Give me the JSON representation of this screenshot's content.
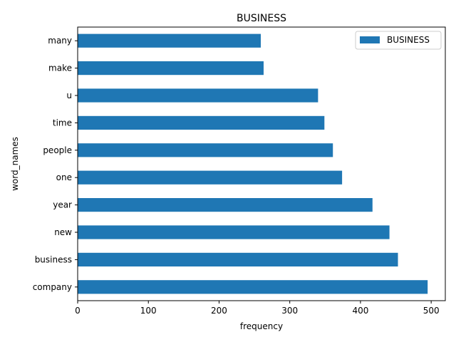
{
  "chart_data": {
    "type": "bar",
    "orientation": "horizontal",
    "title": "BUSINESS",
    "xlabel": "frequency",
    "ylabel": "word_names",
    "categories": [
      "company",
      "business",
      "new",
      "year",
      "one",
      "people",
      "time",
      "u",
      "make",
      "many"
    ],
    "series": [
      {
        "name": "BUSINESS",
        "values": [
          495,
          453,
          441,
          417,
          374,
          361,
          349,
          340,
          263,
          259
        ],
        "color": "#1f77b4"
      }
    ],
    "xlim": [
      0,
      520
    ],
    "xticks": [
      "0",
      "100",
      "200",
      "300",
      "400",
      "500"
    ],
    "grid": false,
    "legend_position": "top-right"
  }
}
